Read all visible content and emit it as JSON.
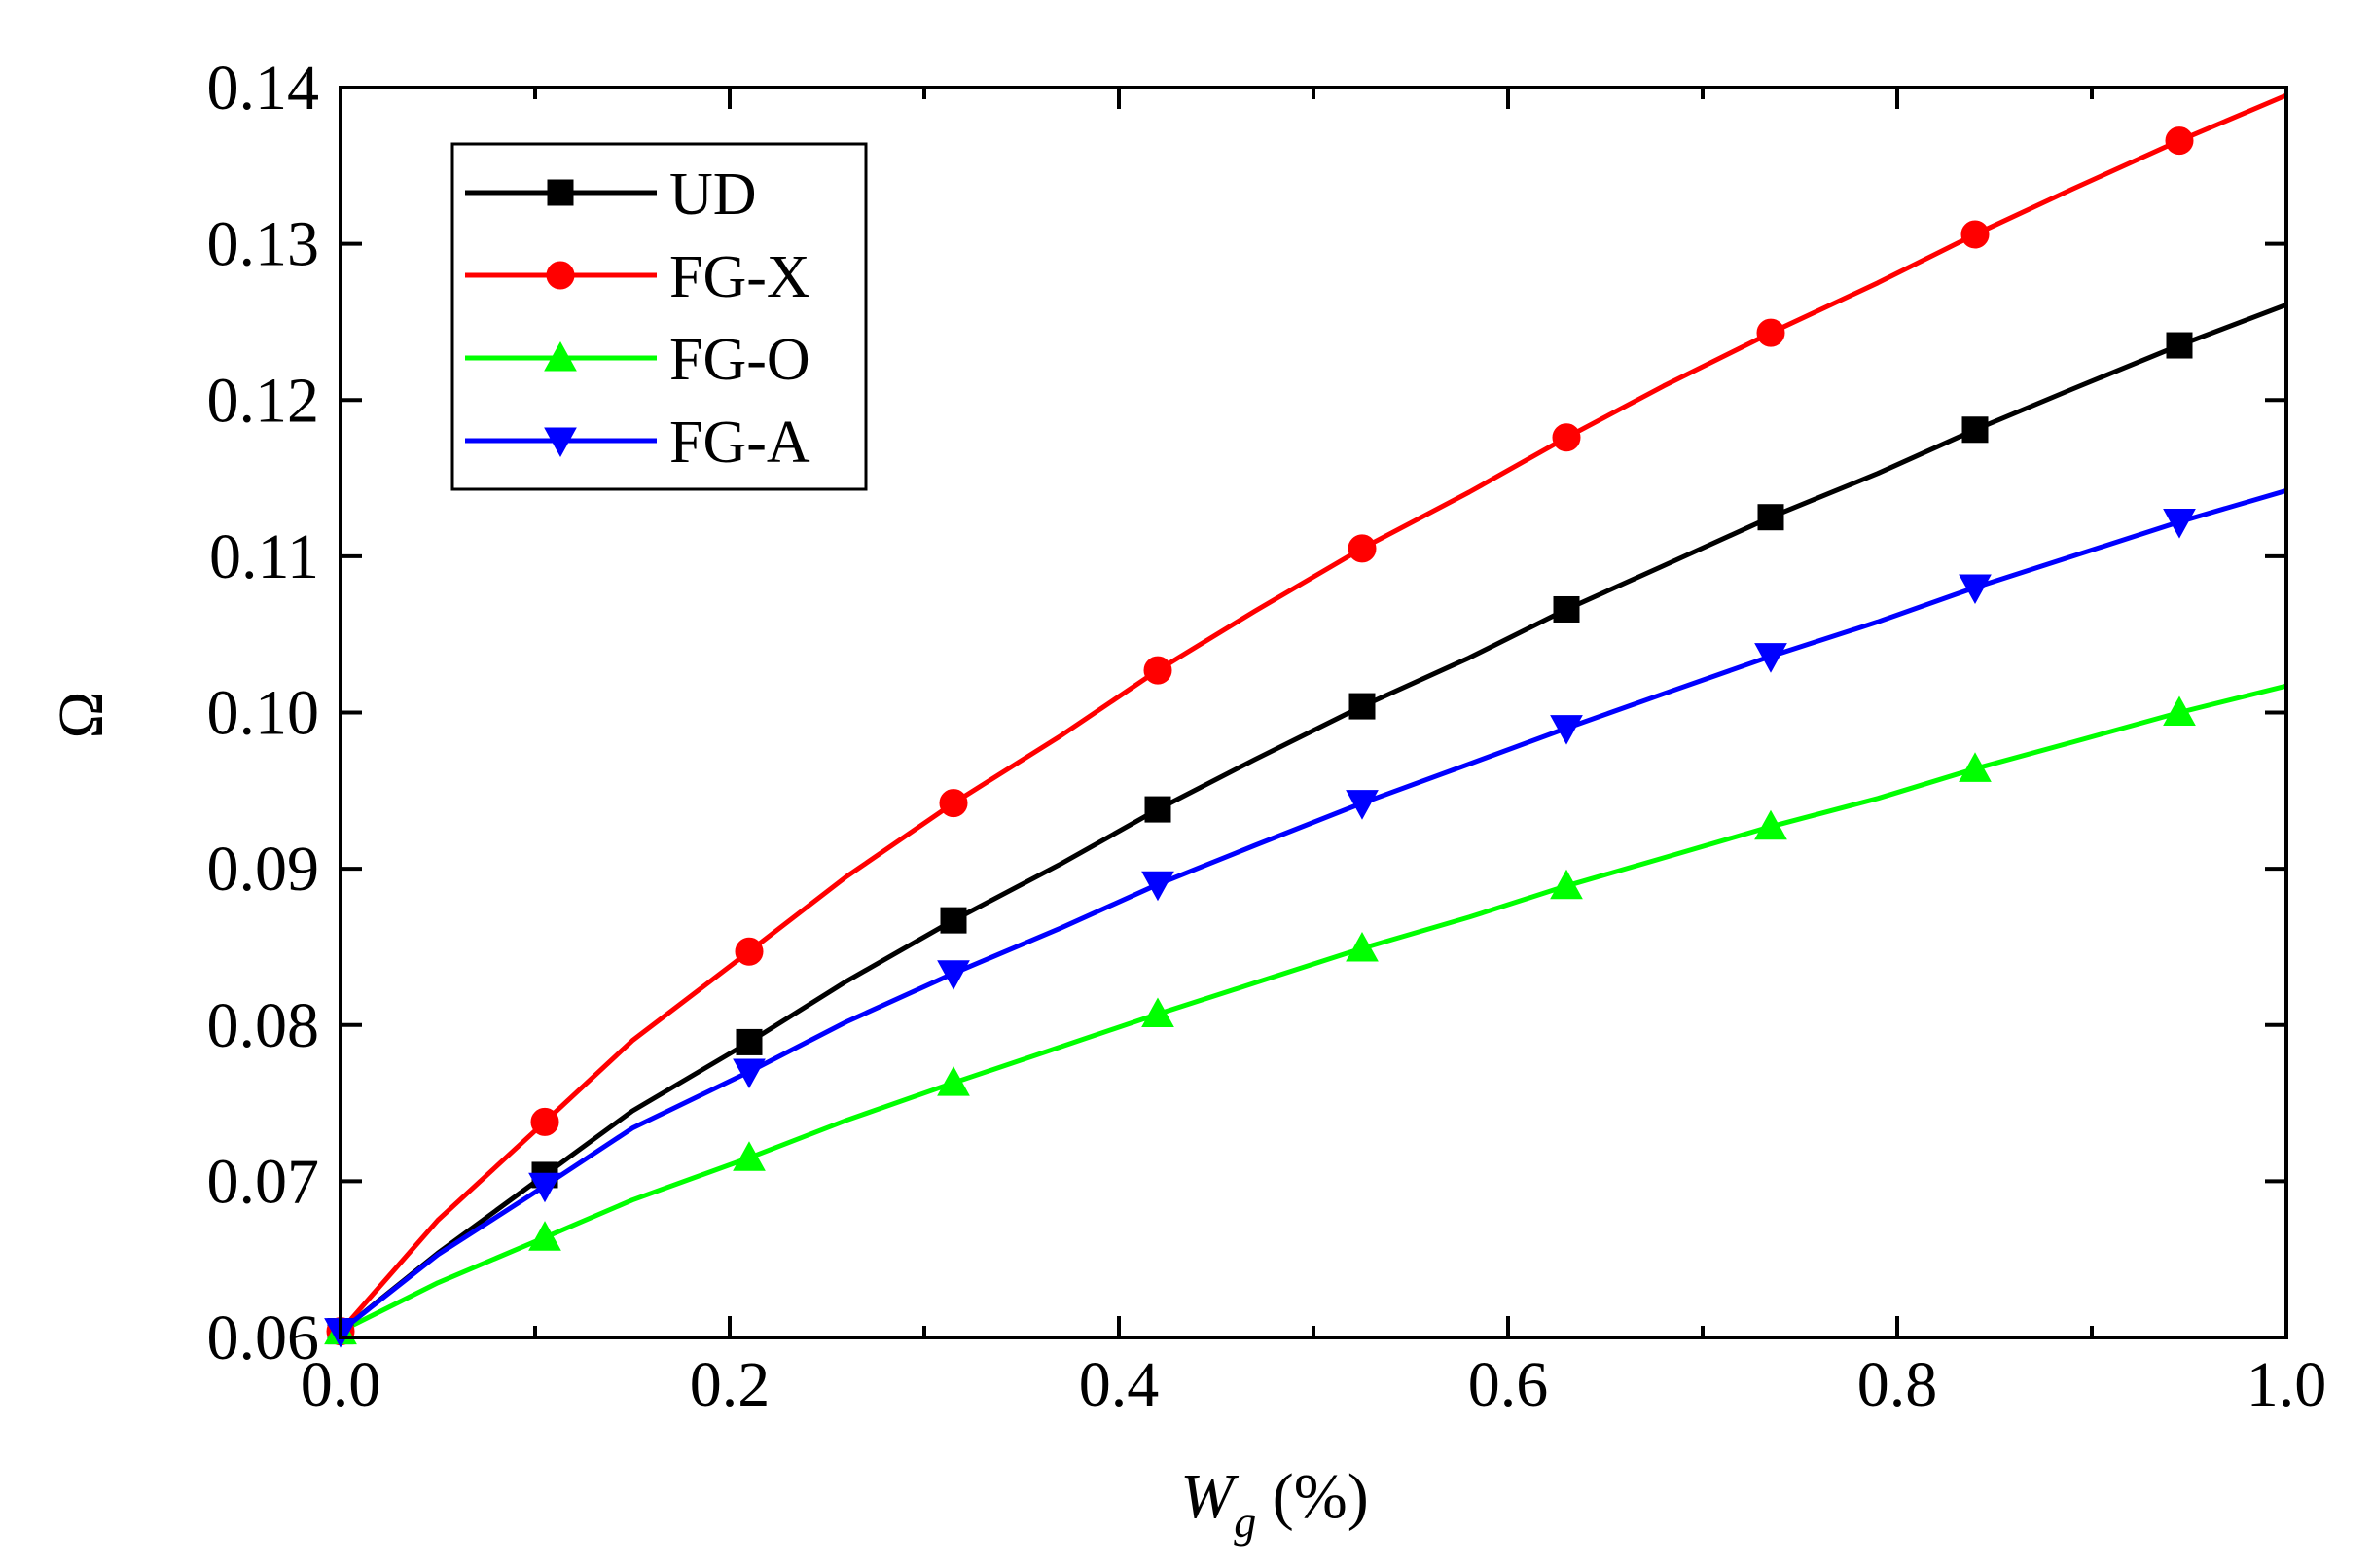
{
  "chart_data": {
    "type": "line",
    "title": "",
    "xlabel": "W",
    "xlabel_sub": "g",
    "xlabel_suffix": " (%)",
    "ylabel": "Ω",
    "xlim": [
      0.0,
      1.0
    ],
    "ylim": [
      0.06,
      0.14
    ],
    "xticks": [
      0.0,
      0.2,
      0.4,
      0.6,
      0.8,
      1.0
    ],
    "xtick_labels": [
      "0.0",
      "0.2",
      "0.4",
      "0.6",
      "0.8",
      "1.0"
    ],
    "yticks": [
      0.06,
      0.07,
      0.08,
      0.09,
      0.1,
      0.11,
      0.12,
      0.13,
      0.14
    ],
    "ytick_labels": [
      "0.06",
      "0.07",
      "0.08",
      "0.09",
      "0.10",
      "0.11",
      "0.12",
      "0.13",
      "0.14"
    ],
    "grid": false,
    "legend_position": "top-left",
    "series": [
      {
        "name": "UD",
        "color": "#000000",
        "marker": "square",
        "curve_x": [
          0,
          0.05,
          0.105,
          0.15,
          0.21,
          0.26,
          0.315,
          0.37,
          0.42,
          0.47,
          0.525,
          0.58,
          0.63,
          0.68,
          0.735,
          0.79,
          0.84,
          0.89,
          0.945,
          1.0
        ],
        "curve_y": [
          0.0604,
          0.0654,
          0.0704,
          0.0745,
          0.0789,
          0.0828,
          0.0867,
          0.0903,
          0.0938,
          0.097,
          0.1004,
          0.1035,
          0.1066,
          0.1094,
          0.1125,
          0.1153,
          0.1181,
          0.1207,
          0.1235,
          0.1261
        ],
        "marker_x": [
          0.0,
          0.105,
          0.21,
          0.315,
          0.42,
          0.525,
          0.63,
          0.735,
          0.84,
          0.945
        ],
        "marker_y": [
          0.0604,
          0.0704,
          0.0789,
          0.0867,
          0.0938,
          0.1004,
          0.1066,
          0.1125,
          0.1181,
          0.1235
        ]
      },
      {
        "name": "FG-X",
        "color": "#ff0000",
        "marker": "circle",
        "curve_x": [
          0,
          0.05,
          0.105,
          0.15,
          0.21,
          0.26,
          0.315,
          0.37,
          0.42,
          0.47,
          0.525,
          0.58,
          0.63,
          0.68,
          0.735,
          0.79,
          0.84,
          0.89,
          0.945,
          1.0
        ],
        "curve_y": [
          0.0604,
          0.0675,
          0.0738,
          0.079,
          0.0847,
          0.0895,
          0.0942,
          0.0985,
          0.1027,
          0.1065,
          0.1105,
          0.1141,
          0.1176,
          0.1209,
          0.1243,
          0.1275,
          0.1306,
          0.1335,
          0.1366,
          0.1395
        ],
        "marker_x": [
          0.0,
          0.105,
          0.21,
          0.315,
          0.42,
          0.525,
          0.63,
          0.735,
          0.84,
          0.945
        ],
        "marker_y": [
          0.0604,
          0.0738,
          0.0847,
          0.0942,
          0.1027,
          0.1105,
          0.1176,
          0.1243,
          0.1306,
          0.1366
        ]
      },
      {
        "name": "FG-O",
        "color": "#00ff00",
        "marker": "triangle-up",
        "curve_x": [
          0,
          0.05,
          0.105,
          0.15,
          0.21,
          0.26,
          0.315,
          0.37,
          0.42,
          0.47,
          0.525,
          0.58,
          0.63,
          0.68,
          0.735,
          0.79,
          0.84,
          0.89,
          0.945,
          1.0
        ],
        "curve_y": [
          0.0604,
          0.0635,
          0.0664,
          0.0688,
          0.0715,
          0.0739,
          0.0763,
          0.0786,
          0.0807,
          0.0827,
          0.0849,
          0.0869,
          0.0889,
          0.0907,
          0.0927,
          0.0945,
          0.0964,
          0.0981,
          0.1,
          0.1017
        ],
        "marker_x": [
          0.0,
          0.105,
          0.21,
          0.315,
          0.42,
          0.525,
          0.63,
          0.735,
          0.84,
          0.945
        ],
        "marker_y": [
          0.0604,
          0.0664,
          0.0715,
          0.0763,
          0.0807,
          0.0849,
          0.0889,
          0.0927,
          0.0964,
          0.1
        ]
      },
      {
        "name": "FG-A",
        "color": "#0000ff",
        "marker": "triangle-down",
        "curve_x": [
          0,
          0.05,
          0.105,
          0.15,
          0.21,
          0.26,
          0.315,
          0.37,
          0.42,
          0.47,
          0.525,
          0.58,
          0.63,
          0.68,
          0.735,
          0.79,
          0.84,
          0.89,
          0.945,
          1.0
        ],
        "curve_y": [
          0.0604,
          0.0653,
          0.0697,
          0.0734,
          0.077,
          0.0802,
          0.0833,
          0.0862,
          0.089,
          0.0915,
          0.0942,
          0.0967,
          0.099,
          0.1012,
          0.1036,
          0.1058,
          0.108,
          0.11,
          0.1122,
          0.1142
        ],
        "marker_x": [
          0.0,
          0.105,
          0.21,
          0.315,
          0.42,
          0.525,
          0.63,
          0.735,
          0.84,
          0.945
        ],
        "marker_y": [
          0.0604,
          0.0697,
          0.077,
          0.0833,
          0.089,
          0.0942,
          0.099,
          0.1036,
          0.108,
          0.1122
        ]
      }
    ]
  }
}
